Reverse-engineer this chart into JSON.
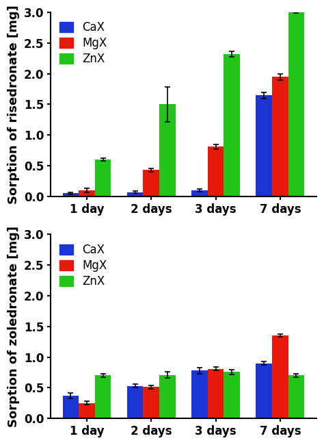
{
  "top_chart": {
    "ylabel": "Sorption of risedronate [mg]",
    "categories": [
      "1 day",
      "2 days",
      "3 days",
      "7 days"
    ],
    "CaX_values": [
      0.05,
      0.07,
      0.1,
      1.65
    ],
    "MgX_values": [
      0.1,
      0.43,
      0.81,
      1.95
    ],
    "ZnX_values": [
      0.6,
      1.5,
      2.32,
      3.0
    ],
    "CaX_errors": [
      0.02,
      0.02,
      0.02,
      0.05
    ],
    "MgX_errors": [
      0.03,
      0.03,
      0.04,
      0.05
    ],
    "ZnX_errors": [
      0.02,
      0.28,
      0.04,
      0.01
    ],
    "ylim": [
      0,
      3.0
    ],
    "yticks": [
      0.0,
      0.5,
      1.0,
      1.5,
      2.0,
      2.5,
      3.0
    ]
  },
  "bottom_chart": {
    "ylabel": "Sorption of zoledronate [mg]",
    "categories": [
      "1 day",
      "2 days",
      "3 days",
      "7 days"
    ],
    "CaX_values": [
      0.37,
      0.53,
      0.78,
      0.9
    ],
    "MgX_values": [
      0.25,
      0.51,
      0.81,
      1.35
    ],
    "ZnX_values": [
      0.7,
      0.71,
      0.76,
      0.7
    ],
    "CaX_errors": [
      0.04,
      0.03,
      0.05,
      0.03
    ],
    "MgX_errors": [
      0.03,
      0.03,
      0.03,
      0.02
    ],
    "ZnX_errors": [
      0.03,
      0.05,
      0.04,
      0.03
    ],
    "ylim": [
      0,
      3.0
    ],
    "yticks": [
      0.0,
      0.5,
      1.0,
      1.5,
      2.0,
      2.5,
      3.0
    ]
  },
  "colors": {
    "CaX": "#1a35d4",
    "MgX": "#e81a0c",
    "ZnX": "#23c41a"
  },
  "legend_labels": [
    "CaX",
    "MgX",
    "ZnX"
  ],
  "bar_width": 0.25,
  "capsize": 3,
  "elinewidth": 1.2,
  "ecolor": "black",
  "background_color": "#ffffff",
  "tick_fontsize": 12,
  "label_fontsize": 13,
  "legend_fontsize": 12
}
